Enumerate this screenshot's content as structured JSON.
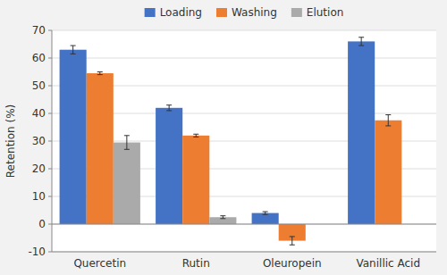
{
  "chart_data": {
    "type": "bar",
    "categories": [
      "Quercetin",
      "Rutin",
      "Oleuropein",
      "Vanillic Acid"
    ],
    "series": [
      {
        "name": "Loading",
        "color": "#4472C4",
        "values": [
          63,
          42,
          4,
          66
        ],
        "errors": [
          1.5,
          1.0,
          0.5,
          1.5
        ]
      },
      {
        "name": "Washing",
        "color": "#ED7D31",
        "values": [
          54.5,
          32,
          -6,
          37.5
        ],
        "errors": [
          0.5,
          0.5,
          1.5,
          2.0
        ]
      },
      {
        "name": "Elution",
        "color": "#AAAAAA",
        "values": [
          29.5,
          2.5,
          null,
          null
        ],
        "errors": [
          2.5,
          0.5,
          null,
          null
        ]
      }
    ],
    "y_label": "Retention (%)",
    "ylim": [
      -10,
      70
    ],
    "yticks": [
      -10,
      0,
      10,
      20,
      30,
      40,
      50,
      60,
      70
    ],
    "grid": true,
    "legend": "top"
  }
}
